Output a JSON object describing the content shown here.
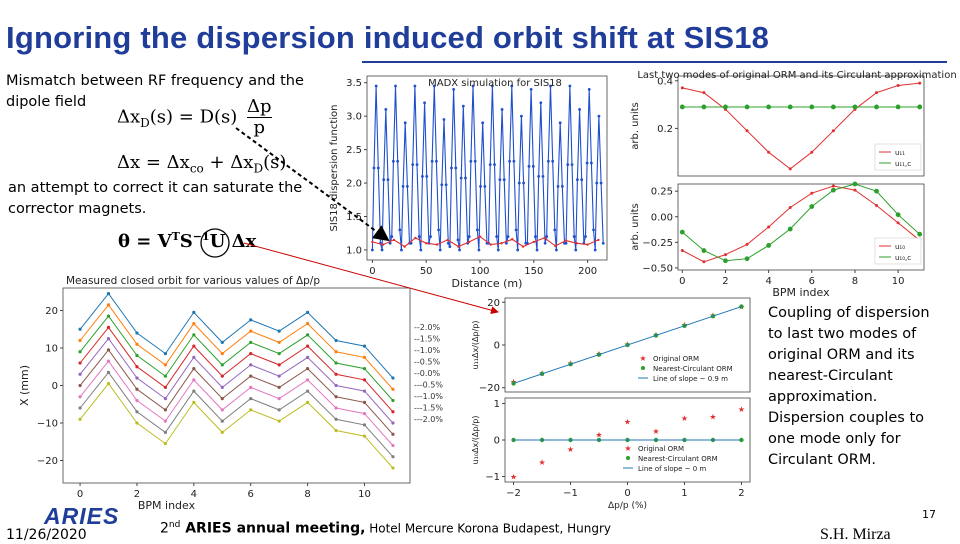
{
  "slide": {
    "title": "Ignoring the dispersion induced orbit shift at SIS18",
    "intro_text": "Mismatch between RF frequency and the dipole field",
    "eq1": "Δxₑ(s) = D(s) Δp/p",
    "eq1_lhs": "Δx",
    "eq1_lhs_sub": "D",
    "eq1_mid": "(s) = D(s)",
    "eq1_num": "Δp",
    "eq1_den": "p",
    "eq2": "Δx = Δxₙₒ + Δxₑ(s)",
    "eq2_a": "Δx = Δx",
    "eq2_a_sub": "co",
    "eq2_b": " + Δx",
    "eq2_b_sub": "D",
    "eq2_c": "(s)",
    "attempt_text": "an attempt to correct it can saturate the corrector magnets.",
    "eq3_a": "θ = V",
    "eq3_sup": "T",
    "eq3_b": "S",
    "eq3_sup2": "−1",
    "eq3_c": "U Δx",
    "coupling_text": "Coupling of dispersion to last two modes of original ORM and its nearest-Circulant approximation. Dispersion couples to one mode only for Circulant ORM.",
    "date": "11/26/2020",
    "meeting_ordinal": "2",
    "meeting_sup": "nd",
    "meeting_bold": " ARIES annual meeting,",
    "meeting_rest": " Hotel Mercure Korona Budapest, Hungry",
    "author": "S.H. Mirza",
    "page_number": "17",
    "logo_text": "ARIES",
    "colors": {
      "title": "#1f3d99",
      "red": "#e03030",
      "green": "#2ca02c",
      "blue": "#1f4fcc",
      "line_blue": "#1f77b4"
    }
  },
  "chart_data": [
    {
      "id": "dispersion",
      "type": "line",
      "title": "MADX simulation for SIS18",
      "xlabel": "Distance (m)",
      "ylabel": "SIS18 dispersion function",
      "xlim": [
        -5,
        218
      ],
      "ylim": [
        0.85,
        3.6
      ],
      "xticks": [
        0,
        50,
        100,
        150,
        200
      ],
      "yticks": [
        1.0,
        1.5,
        2.0,
        2.5,
        3.0,
        3.5
      ],
      "series": [
        {
          "color": "#1f4fcc",
          "periods": 24,
          "period_length": 9.0,
          "max_values": [
            3.45,
            3.1,
            3.45,
            2.9,
            3.45,
            3.2,
            3.45,
            2.95,
            3.4,
            3.15,
            3.45,
            2.9,
            3.45,
            3.1,
            3.45,
            3.0,
            3.4,
            3.2,
            3.45,
            2.9,
            3.45,
            3.1,
            3.4,
            3.0
          ],
          "min_values": [
            1.0,
            1.0,
            1.2,
            1.0,
            1.1,
            1.0,
            1.2,
            1.0,
            1.05,
            1.0,
            1.2,
            1.0,
            1.1,
            1.0,
            1.2,
            1.0,
            1.1,
            1.0,
            1.2,
            1.0,
            1.1,
            1.0,
            1.2,
            1.0
          ]
        },
        {
          "color": "#e03030",
          "x": [
            0,
            10,
            20,
            30,
            40,
            50,
            60,
            70,
            80,
            90,
            100,
            110,
            120,
            130,
            140,
            150,
            160,
            170,
            180,
            190,
            200,
            210
          ],
          "y": [
            1.12,
            1.08,
            1.15,
            1.05,
            1.18,
            1.1,
            1.08,
            1.15,
            1.05,
            1.12,
            1.2,
            1.08,
            1.1,
            1.16,
            1.05,
            1.12,
            1.18,
            1.06,
            1.14,
            1.1,
            1.08,
            1.15
          ]
        }
      ]
    },
    {
      "id": "modes-top",
      "type": "line",
      "title": "Last two modes of original ORM and its Circulant approximation",
      "ylabel": "arb. units",
      "xlim": [
        -0.2,
        11.2
      ],
      "ylim": [
        0.0,
        0.42
      ],
      "yticks": [
        0.2,
        0.4
      ],
      "legend": "bottom-right",
      "series": [
        {
          "name": "u₁₁",
          "color": "#e03030",
          "x": [
            0,
            1,
            2,
            3,
            4,
            5,
            6,
            7,
            8,
            9,
            10,
            11
          ],
          "y": [
            0.37,
            0.35,
            0.28,
            0.19,
            0.1,
            0.03,
            0.1,
            0.19,
            0.28,
            0.35,
            0.38,
            0.39
          ]
        },
        {
          "name": "u₁₁,c",
          "color": "#2ca02c",
          "x": [
            0,
            1,
            2,
            3,
            4,
            5,
            6,
            7,
            8,
            9,
            10,
            11
          ],
          "y": [
            0.29,
            0.29,
            0.29,
            0.29,
            0.29,
            0.29,
            0.29,
            0.29,
            0.29,
            0.29,
            0.29,
            0.29
          ]
        }
      ]
    },
    {
      "id": "modes-bottom",
      "type": "line",
      "xlabel": "BPM index",
      "ylabel": "arb. units",
      "xlim": [
        -0.2,
        11.2
      ],
      "ylim": [
        -0.52,
        0.32
      ],
      "xticks": [
        0,
        2,
        4,
        6,
        8,
        10
      ],
      "yticks": [
        -0.5,
        -0.25,
        0.0,
        0.25
      ],
      "legend": "bottom-right",
      "series": [
        {
          "name": "u₁₀",
          "color": "#e03030",
          "x": [
            0,
            1,
            2,
            3,
            4,
            5,
            6,
            7,
            8,
            9,
            10,
            11
          ],
          "y": [
            -0.33,
            -0.44,
            -0.37,
            -0.27,
            -0.1,
            0.09,
            0.23,
            0.3,
            0.26,
            0.11,
            -0.06,
            -0.23
          ]
        },
        {
          "name": "u₁₀,c",
          "color": "#2ca02c",
          "x": [
            0,
            1,
            2,
            3,
            4,
            5,
            6,
            7,
            8,
            9,
            10,
            11
          ],
          "y": [
            -0.15,
            -0.33,
            -0.43,
            -0.41,
            -0.28,
            -0.12,
            0.1,
            0.26,
            0.32,
            0.25,
            0.02,
            -0.17
          ]
        }
      ]
    },
    {
      "id": "closed-orbit",
      "type": "line",
      "title": "Measured closed orbit for various values of Δp/p",
      "xlabel": "BPM index",
      "ylabel": "X (mm)",
      "xlim": [
        -0.6,
        11.6
      ],
      "ylim": [
        -26,
        26
      ],
      "xticks": [
        0,
        2,
        4,
        6,
        8,
        10
      ],
      "yticks": [
        -20,
        -10,
        0,
        10,
        20
      ],
      "legend": "right",
      "x": [
        0,
        1,
        2,
        3,
        4,
        5,
        6,
        7,
        8,
        9,
        10,
        11
      ],
      "base_shape": [
        1.5,
        11,
        0.5,
        -5,
        6,
        -2,
        4,
        1,
        6,
        -1.5,
        -3,
        -11.5
      ],
      "series": [
        {
          "name": "2.0%",
          "offset": 13.5,
          "color": "#1f77b4"
        },
        {
          "name": "1.5%",
          "offset": 10.5,
          "color": "#ff7f0e"
        },
        {
          "name": "1.0%",
          "offset": 7.5,
          "color": "#2ca02c"
        },
        {
          "name": "0.5%",
          "offset": 4.5,
          "color": "#d62728"
        },
        {
          "name": "0.0%",
          "offset": 1.5,
          "color": "#9467bd"
        },
        {
          "name": "-0.5%",
          "offset": -1.5,
          "color": "#8c564b"
        },
        {
          "name": "-1.0%",
          "offset": -4.5,
          "color": "#e377c2"
        },
        {
          "name": "-1.5%",
          "offset": -7.5,
          "color": "#7f7f7f"
        },
        {
          "name": "-2.0%",
          "offset": -10.5,
          "color": "#bcbd22"
        }
      ]
    },
    {
      "id": "coupling-u11",
      "type": "scatter",
      "ylabel": "u₁₁Δx/(Δp/p)",
      "xlim": [
        -2.15,
        2.15
      ],
      "ylim": [
        -22,
        22
      ],
      "yticks": [
        -20,
        0,
        20
      ],
      "legend": "bottom-right",
      "series": [
        {
          "name": "Original ORM",
          "color": "#e03030",
          "marker": "star",
          "x": [
            -2,
            -1.5,
            -1,
            -0.5,
            0,
            0.5,
            1,
            1.5,
            2
          ],
          "y": [
            -17,
            -13,
            -8.5,
            -4,
            0.5,
            5,
            9.5,
            14,
            18
          ]
        },
        {
          "name": "Nearest-Circulant ORM",
          "color": "#2ca02c",
          "marker": "dot",
          "x": [
            -2,
            -1.5,
            -1,
            -0.5,
            0,
            0.5,
            1,
            1.5,
            2
          ],
          "y": [
            -18,
            -13.5,
            -9,
            -4.5,
            0,
            4.5,
            9,
            13.5,
            18
          ]
        },
        {
          "name": "Line of slope ~ 0.9 m",
          "color": "#1f77b4",
          "marker": "line",
          "x": [
            -2,
            2
          ],
          "y": [
            -18,
            18
          ]
        }
      ]
    },
    {
      "id": "coupling-u10",
      "type": "scatter",
      "xlabel": "Δp/p (%)",
      "ylabel": "u₁₀Δx/(Δp/p)",
      "xlim": [
        -2.15,
        2.15
      ],
      "ylim": [
        -1.15,
        1.15
      ],
      "xticks": [
        -2,
        -1,
        0,
        1,
        2
      ],
      "yticks": [
        -1,
        0,
        1
      ],
      "legend": "bottom-left",
      "series": [
        {
          "name": "Original ORM",
          "color": "#e03030",
          "marker": "star",
          "x": [
            -2,
            -1.5,
            -1,
            -0.5,
            0,
            0.5,
            1,
            1.5,
            2
          ],
          "y": [
            -1.0,
            -0.6,
            -0.25,
            0.15,
            0.5,
            0.25,
            0.6,
            0.65,
            0.85
          ]
        },
        {
          "name": "Nearest-Circulant ORM",
          "color": "#2ca02c",
          "marker": "dot",
          "x": [
            -2,
            -1.5,
            -1,
            -0.5,
            0,
            0.5,
            1,
            1.5,
            2
          ],
          "y": [
            0,
            0,
            0,
            0,
            0,
            0,
            0,
            0,
            0
          ]
        },
        {
          "name": "Line of slope ~ 0 m",
          "color": "#1f77b4",
          "marker": "line",
          "x": [
            -2,
            2
          ],
          "y": [
            0,
            0
          ]
        }
      ]
    }
  ]
}
